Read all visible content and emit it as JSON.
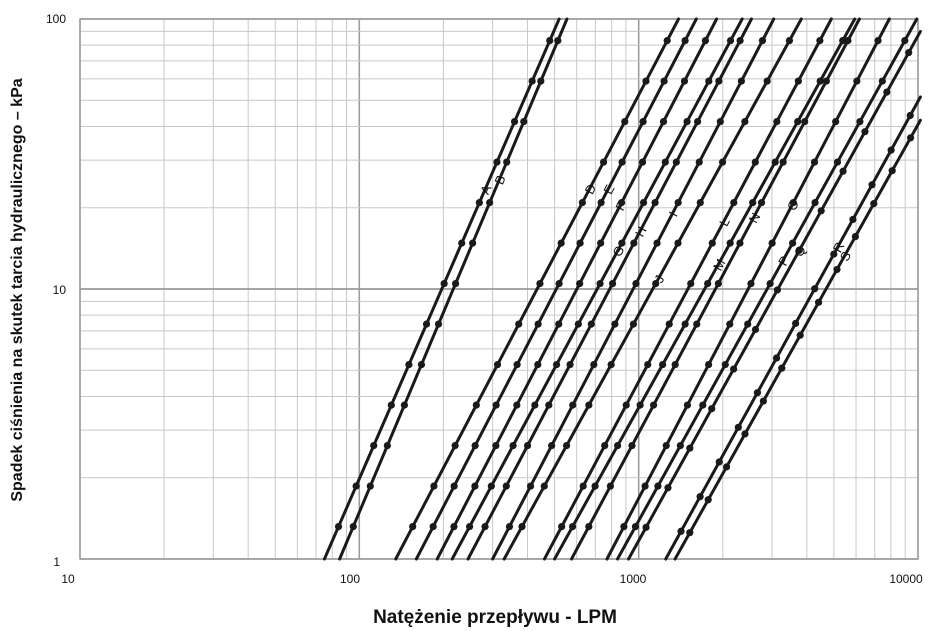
{
  "chart_data": {
    "type": "line",
    "xscale": "log",
    "yscale": "log",
    "xlim": [
      10,
      10000
    ],
    "ylim": [
      1,
      100
    ],
    "xlabel": "Natężenie przepływu - LPM",
    "ylabel": "Spadek ciśnienia na skutek tarcia hydraulicznego – kPa",
    "x_tick_labels": [
      "10",
      "100",
      "1000",
      "10000"
    ],
    "y_tick_labels": [
      "1",
      "10",
      "100"
    ],
    "grid": true,
    "series": [
      {
        "name": "A",
        "x": [
          75,
          280
        ],
        "y": [
          1,
          23
        ]
      },
      {
        "name": "B",
        "x": [
          85,
          315
        ],
        "y": [
          1,
          25
        ]
      },
      {
        "name": "D",
        "x": [
          135,
          660
        ],
        "y": [
          1,
          23
        ]
      },
      {
        "name": "E",
        "x": [
          160,
          770
        ],
        "y": [
          1,
          23
        ]
      },
      {
        "name": "F",
        "x": [
          190,
          850
        ],
        "y": [
          1,
          20
        ]
      },
      {
        "name": "G",
        "x": [
          215,
          830
        ],
        "y": [
          1,
          13.5
        ]
      },
      {
        "name": "H",
        "x": [
          245,
          1000
        ],
        "y": [
          1,
          16
        ]
      },
      {
        "name": "I",
        "x": [
          300,
          1320
        ],
        "y": [
          1,
          19
        ]
      },
      {
        "name": "J",
        "x": [
          330,
          1170
        ],
        "y": [
          1,
          10.8
        ]
      },
      {
        "name": "L",
        "x": [
          460,
          2000
        ],
        "y": [
          1,
          17.5
        ]
      },
      {
        "name": "M",
        "x": [
          500,
          1900
        ],
        "y": [
          1,
          12
        ]
      },
      {
        "name": "N",
        "x": [
          575,
          2550
        ],
        "y": [
          1,
          18
        ]
      },
      {
        "name": "O",
        "x": [
          770,
          3500
        ],
        "y": [
          1,
          20
        ]
      },
      {
        "name": "P",
        "x": [
          840,
          3250
        ],
        "y": [
          1,
          12.5
        ]
      },
      {
        "name": "Q",
        "x": [
          920,
          3700
        ],
        "y": [
          1,
          13.5
        ]
      },
      {
        "name": "R",
        "x": [
          1250,
          5100
        ],
        "y": [
          1,
          14
        ]
      },
      {
        "name": "S",
        "x": [
          1350,
          5400
        ],
        "y": [
          1,
          13
        ]
      }
    ]
  }
}
